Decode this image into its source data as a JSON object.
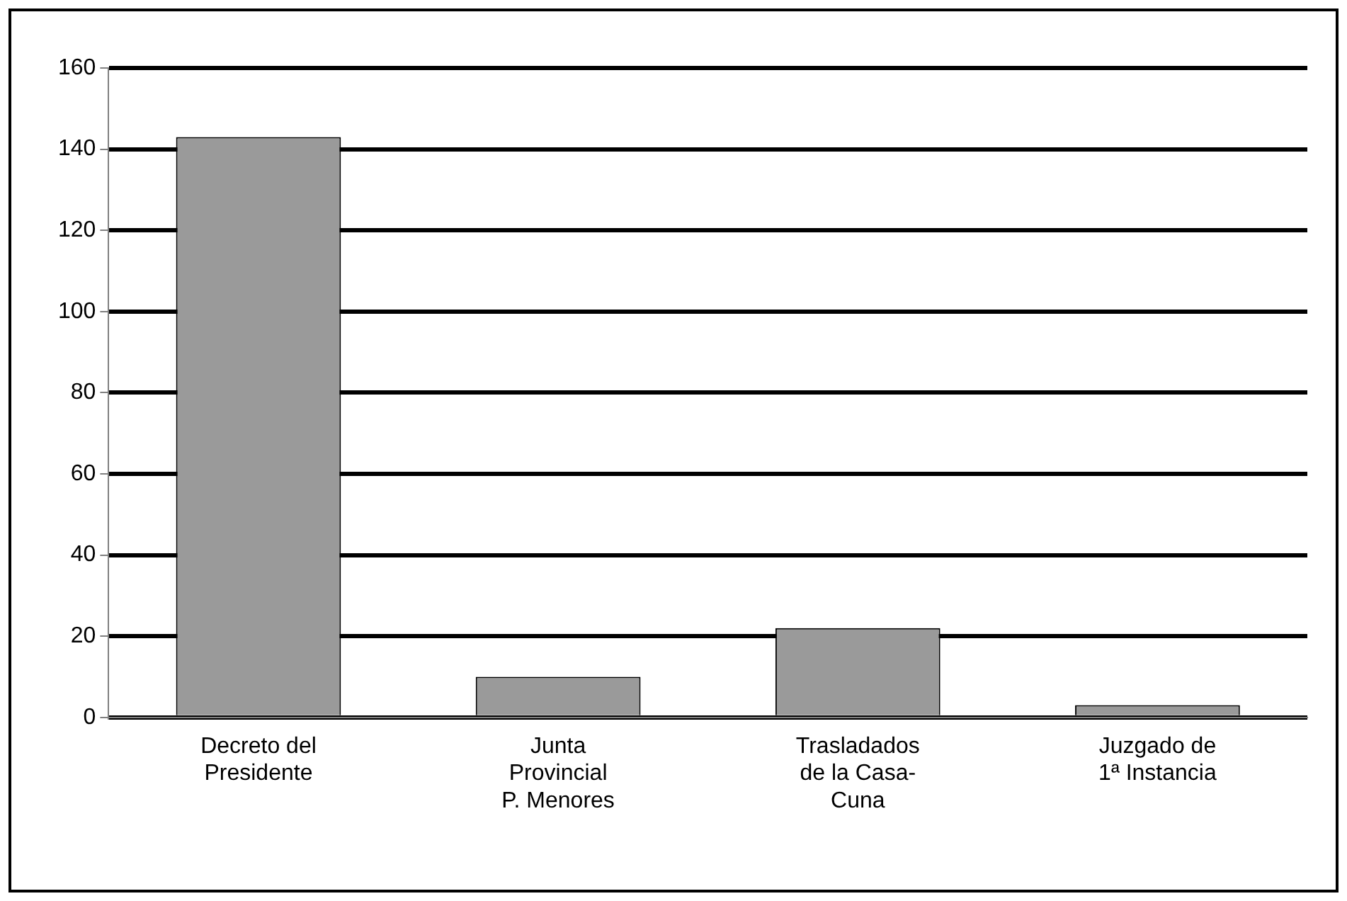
{
  "chart_data": {
    "type": "bar",
    "categories": [
      "Decreto del Presidente",
      "Junta Provincial P. Menores",
      "Trasladados de la Casa-Cuna",
      "Juzgado de 1ª Instancia"
    ],
    "values": [
      143,
      10,
      22,
      3
    ],
    "color": "#9a9a9a",
    "ylim": [
      0,
      160
    ],
    "yticks": [
      0,
      20,
      40,
      60,
      80,
      100,
      120,
      140,
      160
    ],
    "grid": "y",
    "legend": false
  }
}
